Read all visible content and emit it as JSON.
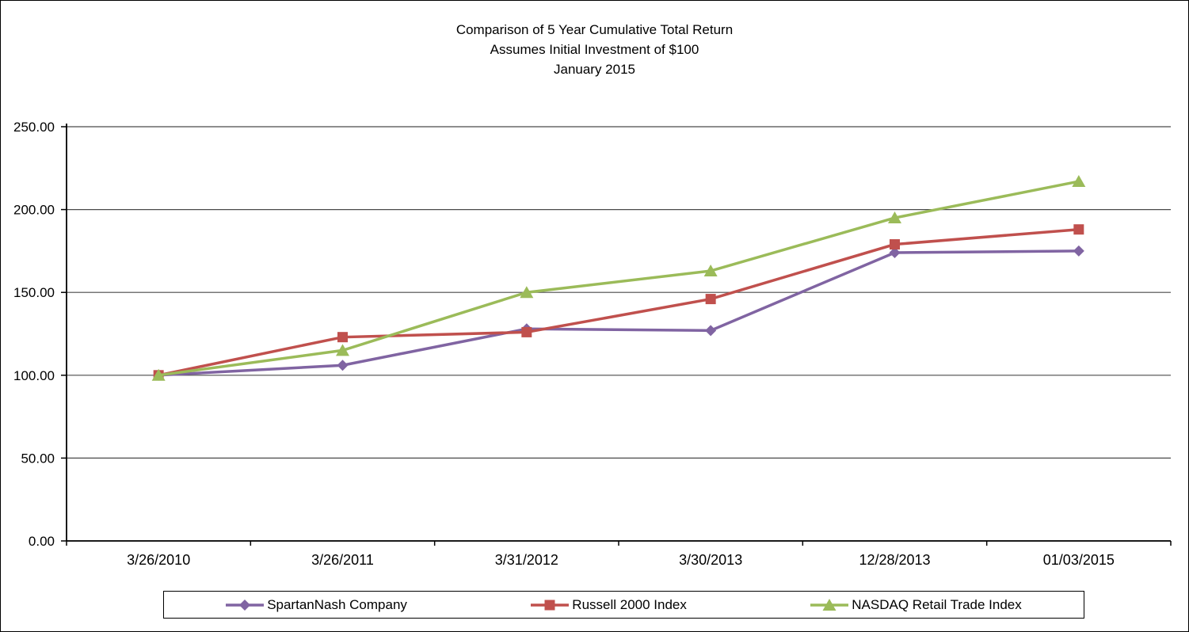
{
  "chart_data": {
    "type": "line",
    "title": "Comparison of 5 Year Cumulative Total Return",
    "subtitle1": "Assumes Initial Investment of $100",
    "subtitle2": "January 2015",
    "categories": [
      "3/26/2010",
      "3/26/2011",
      "3/31/2012",
      "3/30/2013",
      "12/28/2013",
      "01/03/2015"
    ],
    "series": [
      {
        "name": "SpartanNash Company",
        "marker": "diamond",
        "color": "#8064A2",
        "values": [
          100,
          106,
          128,
          127,
          174,
          175
        ]
      },
      {
        "name": "Russell 2000 Index",
        "marker": "square",
        "color": "#C0504D",
        "values": [
          100,
          123,
          126,
          146,
          179,
          188
        ]
      },
      {
        "name": "NASDAQ Retail Trade Index",
        "marker": "triangle",
        "color": "#9BBB59",
        "values": [
          100,
          115,
          150,
          163,
          195,
          217
        ]
      }
    ],
    "ylim": [
      0,
      250
    ],
    "ytick_step": 50,
    "ytick_decimals": 2,
    "grid": "horizontal",
    "legend_position": "bottom",
    "axis_color": "#000000",
    "gridline_color": "#4a4a4a"
  }
}
